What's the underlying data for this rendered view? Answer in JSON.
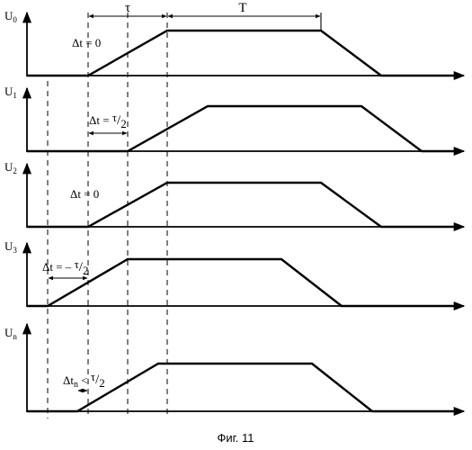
{
  "figure": {
    "caption": "Фиг. 11"
  },
  "top_dimensions": {
    "tau_label": "τ",
    "period_label": "T"
  },
  "panels": [
    {
      "axis_main": "U",
      "axis_sub": "0",
      "shift_label": "Δt = 0"
    },
    {
      "axis_main": "U",
      "axis_sub": "1",
      "shift_prefix": "Δt = ",
      "shift_num": "τ",
      "shift_den": "2"
    },
    {
      "axis_main": "U",
      "axis_sub": "2",
      "shift_label": "Δt = 0"
    },
    {
      "axis_main": "U",
      "axis_sub": "3",
      "shift_prefix": "Δt = – ",
      "shift_num": "τ",
      "shift_den": "2"
    },
    {
      "axis_main": "U",
      "axis_sub": "n",
      "shift_main": "Δt",
      "shift_sub": "n",
      "shift_rel": " < ",
      "shift_num": "τ",
      "shift_den": "2"
    }
  ]
}
